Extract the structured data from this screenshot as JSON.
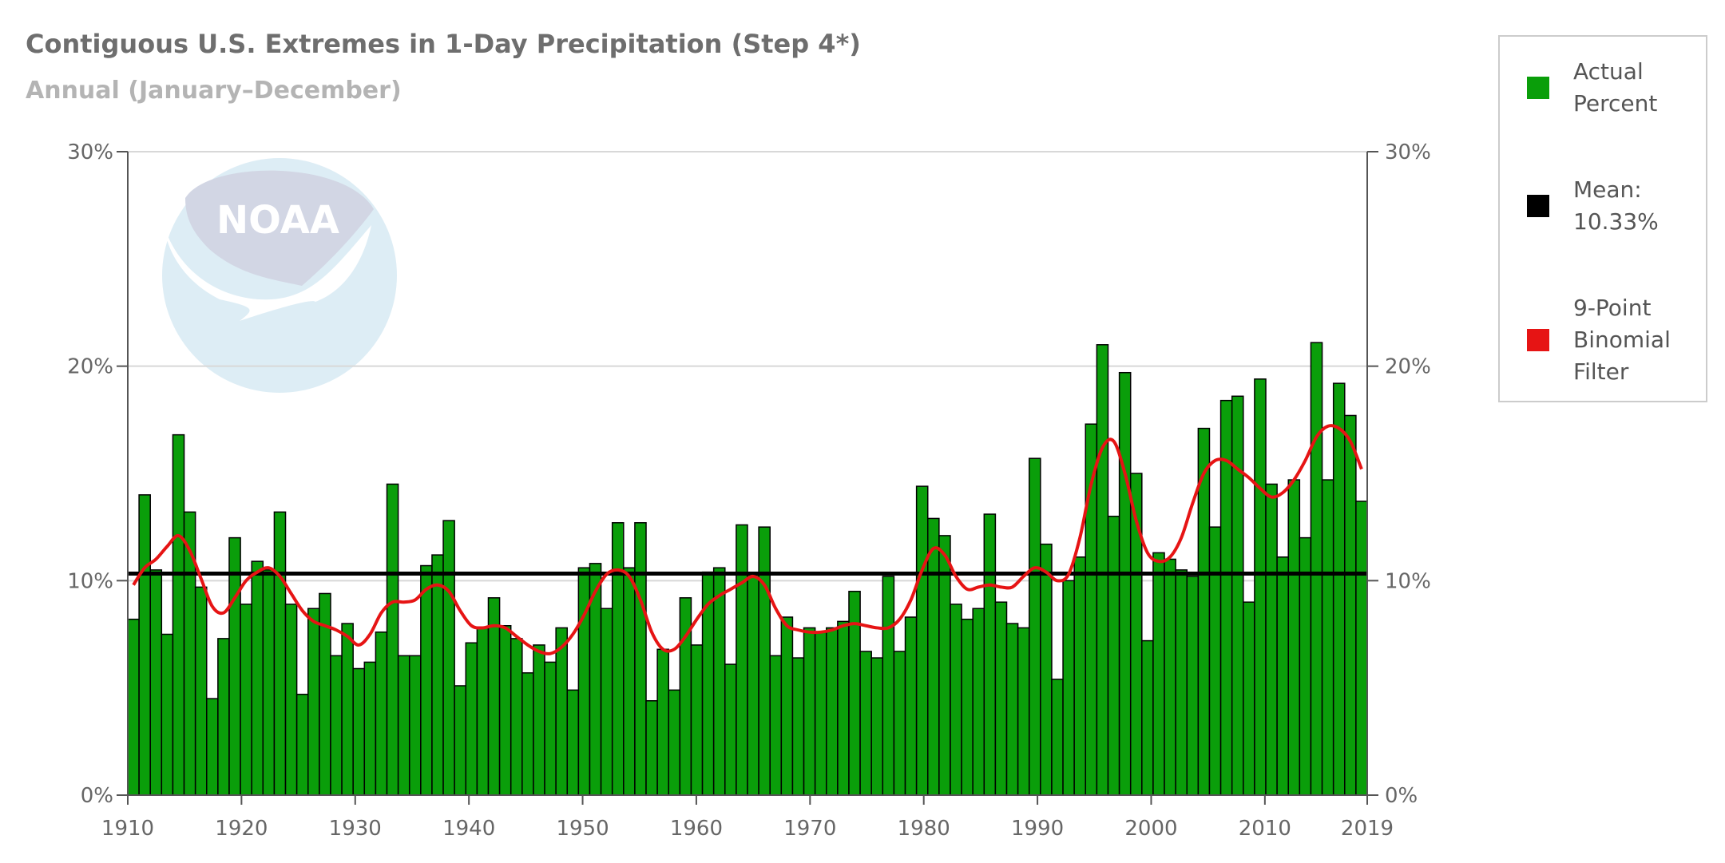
{
  "header": {
    "title": "Contiguous U.S. Extremes in 1-Day Precipitation (Step 4*)",
    "subtitle": "Annual (January–December)"
  },
  "watermark": {
    "icon": "noaa-logo",
    "text": "NOAA"
  },
  "legend": {
    "position": "right",
    "items": [
      {
        "label": "Actual\nPercent",
        "color": "#0a9e0a",
        "icon": "green-square"
      },
      {
        "label": "Mean:\n10.33%",
        "color": "#000000",
        "icon": "black-square"
      },
      {
        "label": "9-Point\nBinomial\nFilter",
        "color": "#e61414",
        "icon": "red-square"
      }
    ]
  },
  "chart_data": {
    "type": "bar",
    "title": "Contiguous U.S. Extremes in 1-Day Precipitation (Step 4*)",
    "subtitle": "Annual (January–December)",
    "x": [
      1910,
      1911,
      1912,
      1913,
      1914,
      1915,
      1916,
      1917,
      1918,
      1919,
      1920,
      1921,
      1922,
      1923,
      1924,
      1925,
      1926,
      1927,
      1928,
      1929,
      1930,
      1931,
      1932,
      1933,
      1934,
      1935,
      1936,
      1937,
      1938,
      1939,
      1940,
      1941,
      1942,
      1943,
      1944,
      1945,
      1946,
      1947,
      1948,
      1949,
      1950,
      1951,
      1952,
      1953,
      1954,
      1955,
      1956,
      1957,
      1958,
      1959,
      1960,
      1961,
      1962,
      1963,
      1964,
      1965,
      1966,
      1967,
      1968,
      1969,
      1970,
      1971,
      1972,
      1973,
      1974,
      1975,
      1976,
      1977,
      1978,
      1979,
      1980,
      1981,
      1982,
      1983,
      1984,
      1985,
      1986,
      1987,
      1988,
      1989,
      1990,
      1991,
      1992,
      1993,
      1994,
      1995,
      1996,
      1997,
      1998,
      1999,
      2000,
      2001,
      2002,
      2003,
      2004,
      2005,
      2006,
      2007,
      2008,
      2009,
      2010,
      2011,
      2012,
      2013,
      2014,
      2015,
      2016,
      2017,
      2018,
      2019
    ],
    "series": [
      {
        "name": "Actual Percent",
        "color": "#0a9e0a",
        "values": [
          8.2,
          14.0,
          10.5,
          7.5,
          16.8,
          13.2,
          9.7,
          4.5,
          7.3,
          12.0,
          8.9,
          10.9,
          10.5,
          13.2,
          8.9,
          4.7,
          8.7,
          9.4,
          6.5,
          8.0,
          5.9,
          6.2,
          7.6,
          14.5,
          6.5,
          6.5,
          10.7,
          11.2,
          12.8,
          5.1,
          7.1,
          7.8,
          9.2,
          7.9,
          7.3,
          5.7,
          7.0,
          6.2,
          7.8,
          4.9,
          10.6,
          10.8,
          8.7,
          12.7,
          10.6,
          12.7,
          4.4,
          6.8,
          4.9,
          9.2,
          7.0,
          10.4,
          10.6,
          6.1,
          12.6,
          10.3,
          12.5,
          6.5,
          8.3,
          6.4,
          7.8,
          7.6,
          7.8,
          8.1,
          9.5,
          6.7,
          6.4,
          10.2,
          6.7,
          8.3,
          14.4,
          12.9,
          12.1,
          8.9,
          8.2,
          8.7,
          13.1,
          9.0,
          8.0,
          7.8,
          15.7,
          11.7,
          5.4,
          10.0,
          11.1,
          17.3,
          21.0,
          13.0,
          19.7,
          15.0,
          7.2,
          11.3,
          11.0,
          10.5,
          10.2,
          17.1,
          12.5,
          18.4,
          18.6,
          9.0,
          19.4,
          14.5,
          11.1,
          14.7,
          12.0,
          21.1,
          14.7,
          19.2,
          17.7,
          13.7
        ]
      },
      {
        "name": "9-Point Binomial Filter",
        "color": "#e61414",
        "values": [
          9.8,
          10.6,
          11.0,
          11.6,
          12.1,
          11.4,
          10.1,
          8.8,
          8.5,
          9.2,
          10.0,
          10.4,
          10.6,
          10.2,
          9.4,
          8.6,
          8.1,
          7.9,
          7.7,
          7.4,
          7.0,
          7.5,
          8.5,
          9.0,
          9.0,
          9.1,
          9.6,
          9.8,
          9.5,
          8.6,
          7.9,
          7.8,
          7.9,
          7.8,
          7.4,
          7.0,
          6.7,
          6.6,
          6.9,
          7.5,
          8.4,
          9.5,
          10.3,
          10.5,
          10.2,
          9.1,
          7.6,
          6.8,
          6.8,
          7.4,
          8.2,
          8.9,
          9.3,
          9.6,
          9.9,
          10.2,
          9.8,
          8.7,
          7.9,
          7.7,
          7.6,
          7.6,
          7.7,
          7.9,
          8.0,
          7.9,
          7.8,
          7.8,
          8.2,
          9.1,
          10.5,
          11.5,
          11.2,
          10.2,
          9.6,
          9.7,
          9.8,
          9.7,
          9.7,
          10.2,
          10.6,
          10.4,
          10.0,
          10.3,
          12.0,
          14.5,
          16.2,
          16.5,
          15.0,
          12.8,
          11.3,
          10.9,
          11.1,
          12.0,
          13.6,
          15.0,
          15.6,
          15.6,
          15.2,
          14.8,
          14.3,
          13.9,
          14.1,
          14.7,
          15.6,
          16.7,
          17.2,
          17.1,
          16.5,
          15.2
        ]
      }
    ],
    "mean": 10.33,
    "ylim": [
      0,
      30
    ],
    "yticks": [
      "0%",
      "10%",
      "20%",
      "30%"
    ],
    "xticks": [
      "1910",
      "1920",
      "1930",
      "1940",
      "1950",
      "1960",
      "1970",
      "1980",
      "1990",
      "2000",
      "2010",
      "2019"
    ],
    "xlabel": "",
    "ylabel": "",
    "grid": true
  }
}
